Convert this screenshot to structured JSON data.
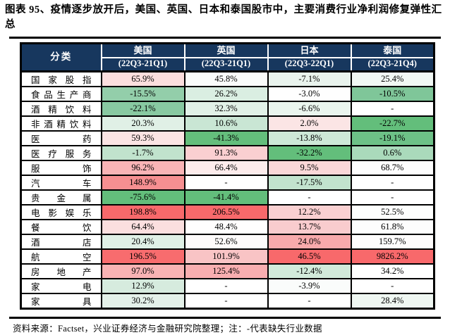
{
  "title": "图表 95、疫情逐步放开后，美国、英国、日本和泰国股市中，主要消费行业净利润修复弹性汇总",
  "footer": "资料来源：Factset，兴业证券经济与金融研究院整理；注：-代表缺失行业数据",
  "colors": {
    "header_bg": "#17375E",
    "header_text": "#FFFFFF",
    "grid": "#000000",
    "scale_low_green": "#63BE7B",
    "scale_mid_white": "#FFFFFF",
    "scale_high_red": "#F8696B"
  },
  "table": {
    "corner_label": "分类",
    "columns": [
      {
        "country": "美国",
        "period": "(22Q3-21Q1)"
      },
      {
        "country": "英国",
        "period": "(22Q3-21Q1)"
      },
      {
        "country": "日本",
        "period": "(22Q3-22Q1)"
      },
      {
        "country": "泰国",
        "period": "(22Q3-21Q4)"
      }
    ],
    "rows": [
      {
        "label": "国家股指",
        "cells": [
          {
            "value": "65.9%",
            "bg": "#FBDEDE"
          },
          {
            "value": "45.8%",
            "bg": "#FAFCFB"
          },
          {
            "value": "-7.1%",
            "bg": "#E9F3ED"
          },
          {
            "value": "25.4%",
            "bg": "#F1F8F4"
          }
        ]
      },
      {
        "label": "食品生产商",
        "cells": [
          {
            "value": "-15.5%",
            "bg": "#93CEAA"
          },
          {
            "value": "26.2%",
            "bg": "#DAEEE2"
          },
          {
            "value": "-3.0%",
            "bg": "#FEFEFE"
          },
          {
            "value": "-10.5%",
            "bg": "#7FC699"
          }
        ]
      },
      {
        "label": "酒精饮料",
        "cells": [
          {
            "value": "-22.1%",
            "bg": "#88C9A1"
          },
          {
            "value": "32.3%",
            "bg": "#E1F1E7"
          },
          {
            "value": "-6.6%",
            "bg": "#EAF5EE"
          },
          {
            "value": "-",
            "bg": "#FFFFFF"
          }
        ]
      },
      {
        "label": "非酒精饮料",
        "cells": [
          {
            "value": "20.3%",
            "bg": "#E0F0E6"
          },
          {
            "value": "10.6%",
            "bg": "#C9E6D4"
          },
          {
            "value": "2.0%",
            "bg": "#FBE5E5"
          },
          {
            "value": "-22.7%",
            "bg": "#63BE7B"
          }
        ]
      },
      {
        "label": "医药",
        "cells": [
          {
            "value": "59.3%",
            "bg": "#FBE4E4"
          },
          {
            "value": "-41.3%",
            "bg": "#64BE7C"
          },
          {
            "value": "-13.8%",
            "bg": "#CDE8D7"
          },
          {
            "value": "-19.1%",
            "bg": "#6DC187"
          }
        ]
      },
      {
        "label": "医疗服务",
        "cells": [
          {
            "value": "-1.7%",
            "bg": "#C1E3CD"
          },
          {
            "value": "91.3%",
            "bg": "#FACFD1"
          },
          {
            "value": "-32.2%",
            "bg": "#63BE7B"
          },
          {
            "value": "0.6%",
            "bg": "#AADABB"
          }
        ]
      },
      {
        "label": "服饰",
        "cells": [
          {
            "value": "96.2%",
            "bg": "#F9B4B6"
          },
          {
            "value": "66.4%",
            "bg": "#FDECEC"
          },
          {
            "value": "9.5%",
            "bg": "#FAD7D8"
          },
          {
            "value": "68.7%",
            "bg": "#FDFDFD"
          }
        ]
      },
      {
        "label": "汽车",
        "cells": [
          {
            "value": "148.9%",
            "bg": "#F68F91"
          },
          {
            "value": "-",
            "bg": "#FFFFFF"
          },
          {
            "value": "-17.5%",
            "bg": "#C2E3CE"
          },
          {
            "value": "-",
            "bg": "#FFFFFF"
          }
        ]
      },
      {
        "label": "贵金属",
        "cells": [
          {
            "value": "-75.6%",
            "bg": "#63BE7B"
          },
          {
            "value": "-41.4%",
            "bg": "#63BE7B"
          },
          {
            "value": "-",
            "bg": "#FFFFFF"
          },
          {
            "value": "-",
            "bg": "#FFFFFF"
          }
        ]
      },
      {
        "label": "电影娱乐",
        "cells": [
          {
            "value": "198.8%",
            "bg": "#F8696B"
          },
          {
            "value": "206.5%",
            "bg": "#F8696B"
          },
          {
            "value": "12.2%",
            "bg": "#FAD0D1"
          },
          {
            "value": "52.5%",
            "bg": "#FDFEFD"
          }
        ]
      },
      {
        "label": "餐饮",
        "cells": [
          {
            "value": "64.4%",
            "bg": "#FBDFDF"
          },
          {
            "value": "48.4%",
            "bg": "#FFFEFE"
          },
          {
            "value": "13.7%",
            "bg": "#F9CCCE"
          },
          {
            "value": "61.8%",
            "bg": "#FDFDFD"
          }
        ]
      },
      {
        "label": "酒店",
        "cells": [
          {
            "value": "20.4%",
            "bg": "#E0F0E6"
          },
          {
            "value": "52.6%",
            "bg": "#FEFBFB"
          },
          {
            "value": "24.0%",
            "bg": "#F8AAAC"
          },
          {
            "value": "159.7%",
            "bg": "#FEFCFC"
          }
        ]
      },
      {
        "label": "航空",
        "cells": [
          {
            "value": "196.5%",
            "bg": "#F86C6E"
          },
          {
            "value": "101.9%",
            "bg": "#F9C4C5"
          },
          {
            "value": "46.5%",
            "bg": "#F8696B"
          },
          {
            "value": "9826.2%",
            "bg": "#F8696B"
          }
        ]
      },
      {
        "label": "房地产",
        "cells": [
          {
            "value": "97.0%",
            "bg": "#F8B3B4"
          },
          {
            "value": "125.4%",
            "bg": "#F8AEB0"
          },
          {
            "value": "-12.4%",
            "bg": "#D2EADA"
          },
          {
            "value": "34.2%",
            "bg": "#FEFFFE"
          }
        ]
      },
      {
        "label": "家电",
        "cells": [
          {
            "value": "12.9%",
            "bg": "#D6EBDE"
          },
          {
            "value": "-",
            "bg": "#FFFFFF"
          },
          {
            "value": "-3.9%",
            "bg": "#FAFCFB"
          },
          {
            "value": "-",
            "bg": "#FFFFFF"
          }
        ]
      },
      {
        "label": "家具",
        "cells": [
          {
            "value": "30.2%",
            "bg": "#E4F1E9"
          },
          {
            "value": "-",
            "bg": "#FFFFFF"
          },
          {
            "value": "-",
            "bg": "#FFFFFF"
          },
          {
            "value": "28.4%",
            "bg": "#EFF7F2"
          }
        ]
      }
    ]
  },
  "chart_data": {
    "type": "heatmap",
    "title": "图表 95、疫情逐步放开后，美国、英国、日本和泰国股市中，主要消费行业净利润修复弹性汇总",
    "columns": [
      "美国 (22Q3-21Q1)",
      "英国 (22Q3-21Q1)",
      "日本 (22Q3-22Q1)",
      "泰国 (22Q3-21Q4)"
    ],
    "rows": [
      "国家股指",
      "食品生产商",
      "酒精饮料",
      "非酒精饮料",
      "医药",
      "医疗服务",
      "服饰",
      "汽车",
      "贵金属",
      "电影娱乐",
      "餐饮",
      "酒店",
      "航空",
      "房地产",
      "家电",
      "家具"
    ],
    "values_pct": [
      [
        65.9,
        45.8,
        -7.1,
        25.4
      ],
      [
        -15.5,
        26.2,
        -3.0,
        -10.5
      ],
      [
        -22.1,
        32.3,
        -6.6,
        null
      ],
      [
        20.3,
        10.6,
        2.0,
        -22.7
      ],
      [
        59.3,
        -41.3,
        -13.8,
        -19.1
      ],
      [
        -1.7,
        91.3,
        -32.2,
        0.6
      ],
      [
        96.2,
        66.4,
        9.5,
        68.7
      ],
      [
        148.9,
        null,
        -17.5,
        null
      ],
      [
        -75.6,
        -41.4,
        null,
        null
      ],
      [
        198.8,
        206.5,
        12.2,
        52.5
      ],
      [
        64.4,
        48.4,
        13.7,
        61.8
      ],
      [
        20.4,
        52.6,
        24.0,
        159.7
      ],
      [
        196.5,
        101.9,
        46.5,
        9826.2
      ],
      [
        97.0,
        125.4,
        -12.4,
        34.2
      ],
      [
        12.9,
        null,
        -3.9,
        null
      ],
      [
        30.2,
        null,
        null,
        28.4
      ]
    ],
    "missing_marker": "-",
    "color_scale": "per-column 3-color scale: min=green #63BE7B, median=white, max=red #F8696B"
  }
}
